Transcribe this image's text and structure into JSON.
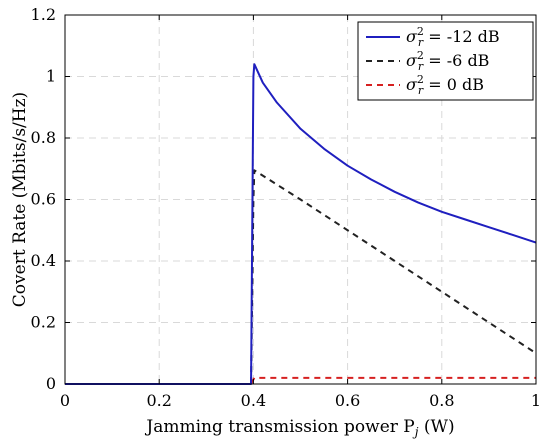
{
  "chart_data": {
    "type": "line",
    "xlabel": "Jamming transmission power P",
    "xlabel_sub": "j",
    "xlabel_unit": " (W)",
    "ylabel": "Covert Rate (Mbits/s/Hz)",
    "xlim": [
      0,
      1
    ],
    "ylim": [
      0,
      1.2
    ],
    "xticks": [
      0,
      0.2,
      0.4,
      0.6,
      0.8,
      1
    ],
    "xtick_labels": [
      "0",
      "0.2",
      "0.4",
      "0.6",
      "0.8",
      "1"
    ],
    "yticks": [
      0,
      0.2,
      0.4,
      0.6,
      0.8,
      1,
      1.2
    ],
    "ytick_labels": [
      "0",
      "0.2",
      "0.4",
      "0.6",
      "0.8",
      "1",
      "1.2"
    ],
    "grid": true,
    "legend_position": "top-right",
    "series": [
      {
        "name": "σr² = -12 dB",
        "legend_symbol": "σ",
        "legend_sup": "2",
        "legend_sub": "r",
        "legend_value": " = -12 dB",
        "color": "#1f1fbf",
        "dash": "solid",
        "x": [
          0,
          0.395,
          0.4,
          0.402,
          0.42,
          0.45,
          0.5,
          0.55,
          0.6,
          0.65,
          0.7,
          0.75,
          0.8,
          0.85,
          0.9,
          0.95,
          1.0
        ],
        "y": [
          0,
          0,
          1.0,
          1.04,
          0.98,
          0.915,
          0.83,
          0.765,
          0.71,
          0.665,
          0.625,
          0.59,
          0.56,
          0.535,
          0.51,
          0.485,
          0.46
        ]
      },
      {
        "name": "σr² = -6 dB",
        "legend_symbol": "σ",
        "legend_sup": "2",
        "legend_sub": "r",
        "legend_value": " = -6 dB",
        "color": "#222222",
        "dash": "dash",
        "x": [
          0,
          0.395,
          0.4,
          0.402,
          0.5,
          0.6,
          0.7,
          0.8,
          0.9,
          1.0
        ],
        "y": [
          0,
          0,
          0.6,
          0.695,
          0.6,
          0.5,
          0.4,
          0.3,
          0.2,
          0.1
        ]
      },
      {
        "name": "σr² = 0 dB",
        "legend_symbol": "σ",
        "legend_sup": "2",
        "legend_sub": "r",
        "legend_value": " = 0 dB",
        "color": "#d62020",
        "dash": "dash",
        "x": [
          0,
          0.395,
          0.402,
          1.0
        ],
        "y": [
          0,
          0,
          0.02,
          0.02
        ]
      }
    ]
  }
}
